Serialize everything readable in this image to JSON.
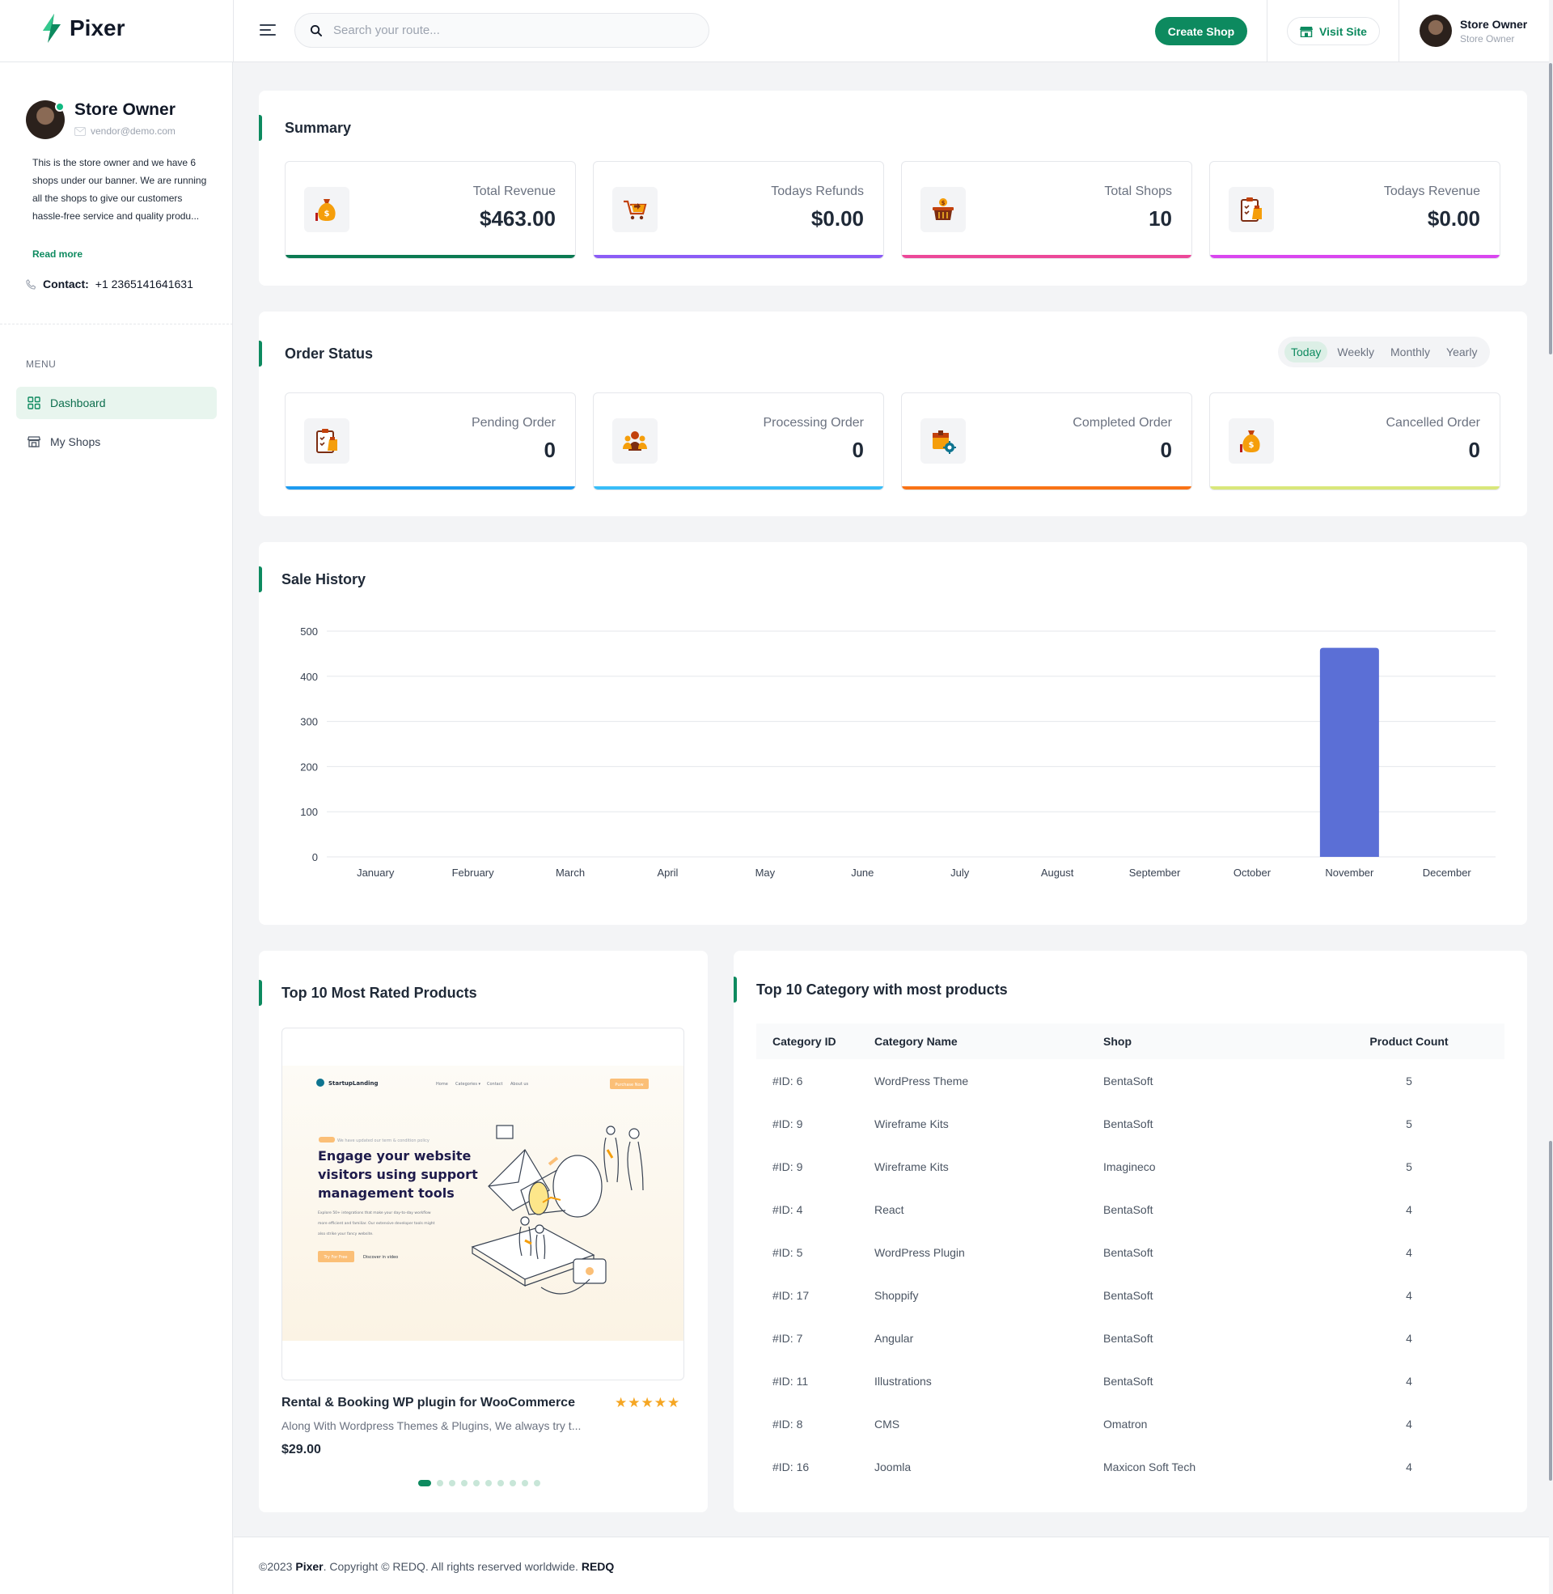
{
  "app": {
    "name": "Pixer"
  },
  "header": {
    "search_placeholder": "Search your route...",
    "create_shop": "Create Shop",
    "visit_site": "Visit Site",
    "user_name": "Store Owner",
    "user_role": "Store Owner"
  },
  "sidebar": {
    "name": "Store Owner",
    "email": "vendor@demo.com",
    "bio": "This is the store owner and we have 6 shops under our banner. We are running all the shops to give our customers hassle-free service and quality produ...",
    "read_more": "Read more",
    "contact_label": "Contact:",
    "contact_value": "+1 2365141641631",
    "menu_title": "MENU",
    "items": [
      {
        "label": "Dashboard",
        "active": true
      },
      {
        "label": "My Shops",
        "active": false
      }
    ]
  },
  "summary": {
    "title": "Summary",
    "stats": [
      {
        "label": "Total Revenue",
        "value": "$463.00",
        "color": "#0b7a52",
        "icon": "money-bag-icon"
      },
      {
        "label": "Todays Refunds",
        "value": "$0.00",
        "color": "#8b5cf6",
        "icon": "cart-refund-icon"
      },
      {
        "label": "Total Shops",
        "value": "10",
        "color": "#ec4899",
        "icon": "shop-basket-icon"
      },
      {
        "label": "Todays Revenue",
        "value": "$0.00",
        "color": "#d946ef",
        "icon": "clipboard-revenue-icon"
      }
    ]
  },
  "order_status": {
    "title": "Order Status",
    "tabs": [
      "Today",
      "Weekly",
      "Monthly",
      "Yearly"
    ],
    "active_tab": "Today",
    "stats": [
      {
        "label": "Pending Order",
        "value": "0",
        "color": "#1d9bf0",
        "icon": "clipboard-pending-icon"
      },
      {
        "label": "Processing Order",
        "value": "0",
        "color": "#38bdf8",
        "icon": "people-processing-icon"
      },
      {
        "label": "Completed Order",
        "value": "0",
        "color": "#f97316",
        "icon": "box-completed-icon"
      },
      {
        "label": "Cancelled Order",
        "value": "0",
        "color": "#d9e77a",
        "icon": "money-bag-cancel-icon"
      }
    ]
  },
  "sale_history": {
    "title": "Sale History",
    "chart_data": {
      "type": "bar",
      "categories": [
        "January",
        "February",
        "March",
        "April",
        "May",
        "June",
        "July",
        "August",
        "September",
        "October",
        "November",
        "December"
      ],
      "series": [
        {
          "values": [
            0,
            0,
            0,
            0,
            0,
            0,
            0,
            0,
            0,
            0,
            463,
            0
          ],
          "color": "#5b6fd6"
        }
      ],
      "ylim": [
        0,
        500
      ],
      "yticks": [
        0,
        100,
        200,
        300,
        400,
        500
      ],
      "grid": true
    }
  },
  "top_products": {
    "title": "Top 10 Most Rated Products",
    "product": {
      "name": "Rental & Booking WP plugin for WooCommerce",
      "stars": "★★★★★",
      "description": "Along With Wordpress Themes & Plugins, We always try t...",
      "price": "$29.00"
    },
    "preview": {
      "brand": "StartupLanding",
      "nav": [
        "Home",
        "Categories ▾",
        "Contact",
        "About us"
      ],
      "cta": "Purchase Now",
      "badge_note": "We have updated our term & condition policy",
      "headline": [
        "Engage your website",
        "visitors using support",
        "management tools"
      ],
      "body": [
        "Explore 50+ integrations that make your day-to-day workflow",
        "more efficient and familiar. Our extensive developer tools might",
        "also strike your fancy website."
      ],
      "primary_btn": "Try For Free",
      "secondary_btn": "Discover in video"
    },
    "dots": 10,
    "active_dot": 0
  },
  "top_categories": {
    "title": "Top 10 Category with most products",
    "columns": [
      "Category ID",
      "Category Name",
      "Shop",
      "Product Count"
    ],
    "rows": [
      [
        "#ID: 6",
        "WordPress Theme",
        "BentaSoft",
        "5"
      ],
      [
        "#ID: 9",
        "Wireframe Kits",
        "BentaSoft",
        "5"
      ],
      [
        "#ID: 9",
        "Wireframe Kits",
        "Imagineco",
        "5"
      ],
      [
        "#ID: 4",
        "React",
        "BentaSoft",
        "4"
      ],
      [
        "#ID: 5",
        "WordPress Plugin",
        "BentaSoft",
        "4"
      ],
      [
        "#ID: 17",
        "Shoppify",
        "BentaSoft",
        "4"
      ],
      [
        "#ID: 7",
        "Angular",
        "BentaSoft",
        "4"
      ],
      [
        "#ID: 11",
        "Illustrations",
        "BentaSoft",
        "4"
      ],
      [
        "#ID: 8",
        "CMS",
        "Omatron",
        "4"
      ],
      [
        "#ID: 16",
        "Joomla",
        "Maxicon Soft Tech",
        "4"
      ]
    ]
  },
  "footer": {
    "year": "©2023",
    "brand": "Pixer",
    "text": ". Copyright © REDQ. All rights reserved worldwide.",
    "company": "REDQ"
  }
}
